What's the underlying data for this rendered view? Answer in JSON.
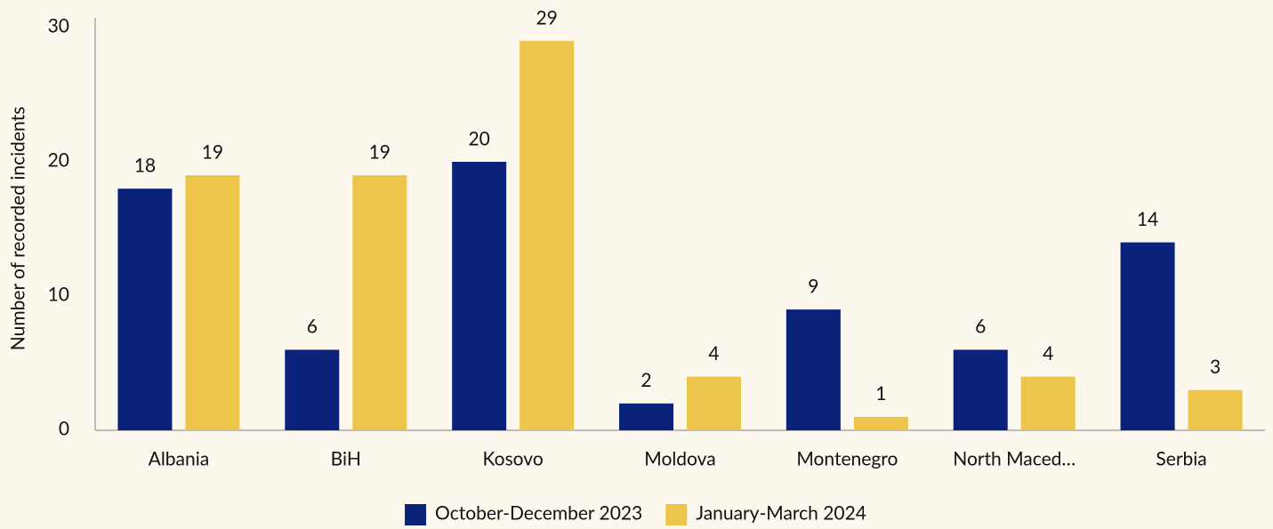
{
  "chart_data": {
    "type": "bar",
    "y_label": "Number of recorded incidents",
    "categories": [
      "Albania",
      "BiH",
      "Kosovo",
      "Moldova",
      "Montenegro",
      "North Maced…",
      "Serbia"
    ],
    "series": [
      {
        "name": "October-December 2023",
        "color": "#0a2279",
        "values": [
          18,
          6,
          20,
          2,
          9,
          6,
          14
        ]
      },
      {
        "name": "January-March 2024",
        "color": "#ecc54a",
        "values": [
          19,
          19,
          29,
          4,
          1,
          4,
          3
        ]
      }
    ],
    "ylim": [
      0,
      30
    ],
    "yticks": [
      0,
      10,
      20,
      30
    ],
    "grid": false,
    "legend": "bottom"
  }
}
